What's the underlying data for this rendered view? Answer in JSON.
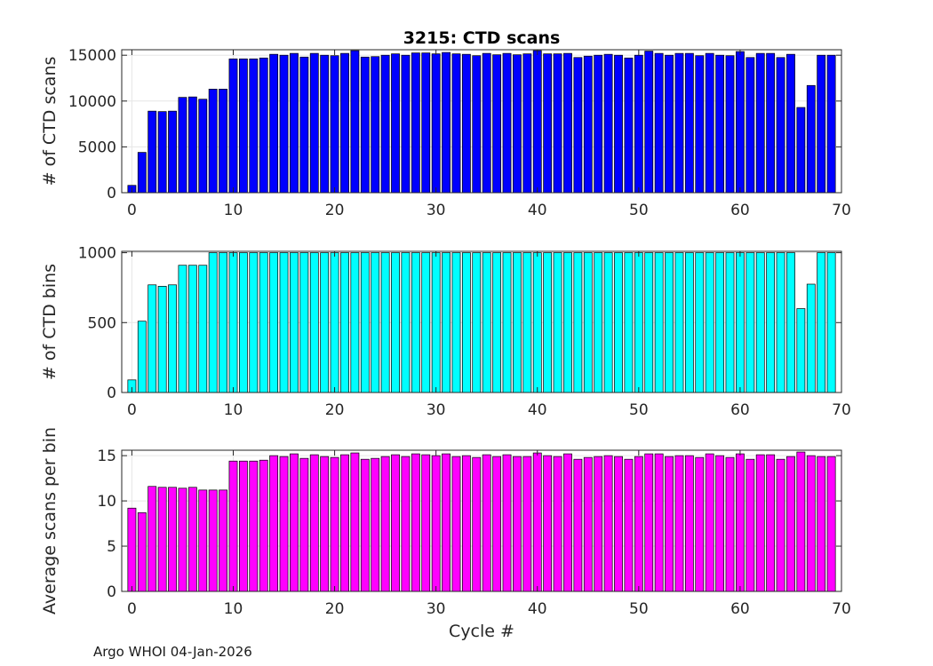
{
  "chart_data": [
    {
      "type": "bar",
      "title": "3215: CTD scans",
      "xlabel": "",
      "ylabel": "# of CTD scans",
      "xlim": [
        -1,
        70
      ],
      "ylim": [
        0,
        15600
      ],
      "xticks": [
        0,
        10,
        20,
        30,
        40,
        50,
        60,
        70
      ],
      "yticks": [
        0,
        5000,
        10000,
        15000
      ],
      "color": "#0000ff",
      "grid": true,
      "x": [
        0,
        1,
        2,
        3,
        4,
        5,
        6,
        7,
        8,
        9,
        10,
        11,
        12,
        13,
        14,
        15,
        16,
        17,
        18,
        19,
        20,
        21,
        22,
        23,
        24,
        25,
        26,
        27,
        28,
        29,
        30,
        31,
        32,
        33,
        34,
        35,
        36,
        37,
        38,
        39,
        40,
        41,
        42,
        43,
        44,
        45,
        46,
        47,
        48,
        49,
        50,
        51,
        52,
        53,
        54,
        55,
        56,
        57,
        58,
        59,
        60,
        61,
        62,
        63,
        64,
        65,
        66,
        67,
        68,
        69
      ],
      "values": [
        800,
        4400,
        8900,
        8850,
        8900,
        10400,
        10450,
        10200,
        11300,
        11300,
        14600,
        14600,
        14600,
        14700,
        15100,
        15000,
        15200,
        14800,
        15200,
        15000,
        14950,
        15200,
        15500,
        14800,
        14850,
        15000,
        15150,
        15000,
        15250,
        15250,
        15150,
        15300,
        15150,
        15100,
        14950,
        15200,
        15050,
        15200,
        15050,
        15150,
        15500,
        15150,
        15150,
        15200,
        14750,
        14900,
        15000,
        15100,
        15000,
        14700,
        15000,
        15450,
        15200,
        15000,
        15200,
        15200,
        14950,
        15200,
        15000,
        14950,
        15400,
        14750,
        15200,
        15200,
        14750,
        15100,
        9300,
        11700,
        15000,
        15000
      ]
    },
    {
      "type": "bar",
      "title": "",
      "xlabel": "",
      "ylabel": "# of CTD bins",
      "xlim": [
        -1,
        70
      ],
      "ylim": [
        0,
        1010
      ],
      "xticks": [
        0,
        10,
        20,
        30,
        40,
        50,
        60,
        70
      ],
      "yticks": [
        0,
        500,
        1000
      ],
      "color": "#00ffff",
      "grid": true,
      "x": [
        0,
        1,
        2,
        3,
        4,
        5,
        6,
        7,
        8,
        9,
        10,
        11,
        12,
        13,
        14,
        15,
        16,
        17,
        18,
        19,
        20,
        21,
        22,
        23,
        24,
        25,
        26,
        27,
        28,
        29,
        30,
        31,
        32,
        33,
        34,
        35,
        36,
        37,
        38,
        39,
        40,
        41,
        42,
        43,
        44,
        45,
        46,
        47,
        48,
        49,
        50,
        51,
        52,
        53,
        54,
        55,
        56,
        57,
        58,
        59,
        60,
        61,
        62,
        63,
        64,
        65,
        66,
        67,
        68,
        69
      ],
      "values": [
        90,
        510,
        770,
        760,
        770,
        910,
        910,
        910,
        1000,
        1000,
        1000,
        1000,
        1000,
        1000,
        1000,
        1000,
        1000,
        1000,
        1000,
        1000,
        1000,
        1000,
        1000,
        1000,
        1000,
        1000,
        1000,
        1000,
        1000,
        1000,
        1000,
        1000,
        1000,
        1000,
        1000,
        1000,
        1000,
        1000,
        1000,
        1000,
        1000,
        1000,
        1000,
        1000,
        1000,
        1000,
        1000,
        1000,
        1000,
        1000,
        1000,
        1000,
        1000,
        1000,
        1000,
        1000,
        1000,
        1000,
        1000,
        1000,
        1000,
        1000,
        1000,
        1000,
        1000,
        1000,
        600,
        775,
        1000,
        1000
      ]
    },
    {
      "type": "bar",
      "title": "",
      "xlabel": "Cycle #",
      "ylabel": "Average scans per bin",
      "xlim": [
        -1,
        70
      ],
      "ylim": [
        0,
        15.6
      ],
      "xticks": [
        0,
        10,
        20,
        30,
        40,
        50,
        60,
        70
      ],
      "yticks": [
        0,
        5,
        10,
        15
      ],
      "color": "#ff00ff",
      "grid": true,
      "x": [
        0,
        1,
        2,
        3,
        4,
        5,
        6,
        7,
        8,
        9,
        10,
        11,
        12,
        13,
        14,
        15,
        16,
        17,
        18,
        19,
        20,
        21,
        22,
        23,
        24,
        25,
        26,
        27,
        28,
        29,
        30,
        31,
        32,
        33,
        34,
        35,
        36,
        37,
        38,
        39,
        40,
        41,
        42,
        43,
        44,
        45,
        46,
        47,
        48,
        49,
        50,
        51,
        52,
        53,
        54,
        55,
        56,
        57,
        58,
        59,
        60,
        61,
        62,
        63,
        64,
        65,
        66,
        67,
        68,
        69
      ],
      "values": [
        9.2,
        8.7,
        11.6,
        11.5,
        11.5,
        11.4,
        11.5,
        11.2,
        11.2,
        11.2,
        14.4,
        14.4,
        14.4,
        14.5,
        15.0,
        14.9,
        15.2,
        14.7,
        15.1,
        14.9,
        14.8,
        15.1,
        15.3,
        14.6,
        14.7,
        14.9,
        15.1,
        14.9,
        15.2,
        15.1,
        15.0,
        15.2,
        14.9,
        15.0,
        14.8,
        15.1,
        14.9,
        15.1,
        14.9,
        14.9,
        15.3,
        15.0,
        14.9,
        15.2,
        14.6,
        14.8,
        14.9,
        15.0,
        14.9,
        14.6,
        14.9,
        15.2,
        15.2,
        14.9,
        15.0,
        15.0,
        14.8,
        15.2,
        15.0,
        14.8,
        15.2,
        14.6,
        15.1,
        15.1,
        14.6,
        14.9,
        15.4,
        15.0,
        14.9,
        14.9
      ]
    }
  ],
  "footer": "Argo WHOI 04-Jan-2026"
}
